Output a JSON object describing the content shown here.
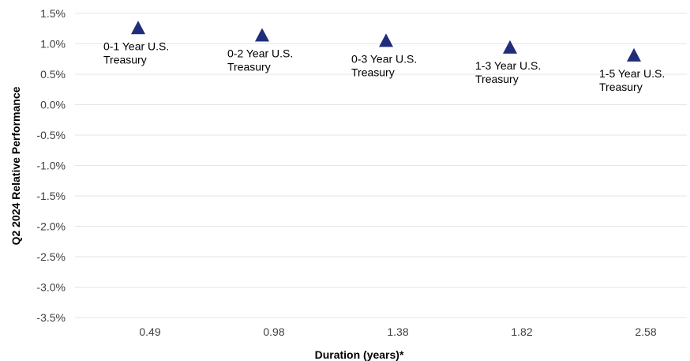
{
  "chart_data": {
    "type": "scatter",
    "title": "",
    "xlabel": "Duration (years)*",
    "ylabel": "Q2 2024 Relative Performance",
    "ylim": [
      -3.5,
      1.5
    ],
    "y_ticks": [
      "1.5%",
      "1.0%",
      "0.5%",
      "0.0%",
      "-0.5%",
      "-1.0%",
      "-1.5%",
      "-2.0%",
      "-2.5%",
      "-3.0%",
      "-3.5%"
    ],
    "y_tick_values": [
      1.5,
      1.0,
      0.5,
      0.0,
      -0.5,
      -1.0,
      -1.5,
      -2.0,
      -2.5,
      -3.0,
      -3.5
    ],
    "categories": [
      "0.49",
      "0.98",
      "1.38",
      "1.82",
      "2.58"
    ],
    "series": [
      {
        "marker": "triangle",
        "color": "#1f2d7a",
        "points": [
          {
            "x": "0.49",
            "y": 1.25,
            "label": [
              "0-1 Year U.S.",
              "Treasury"
            ]
          },
          {
            "x": "0.98",
            "y": 1.13,
            "label": [
              "0-2 Year U.S.",
              "Treasury"
            ]
          },
          {
            "x": "1.38",
            "y": 1.04,
            "label": [
              "0-3 Year U.S.",
              "Treasury"
            ]
          },
          {
            "x": "1.82",
            "y": 0.93,
            "label": [
              "1-3 Year U.S.",
              "Treasury"
            ]
          },
          {
            "x": "2.58",
            "y": 0.8,
            "label": [
              "1-5 Year U.S.",
              "Treasury"
            ]
          }
        ]
      }
    ],
    "grid": true,
    "gridline_color": "#e6e6e6"
  }
}
